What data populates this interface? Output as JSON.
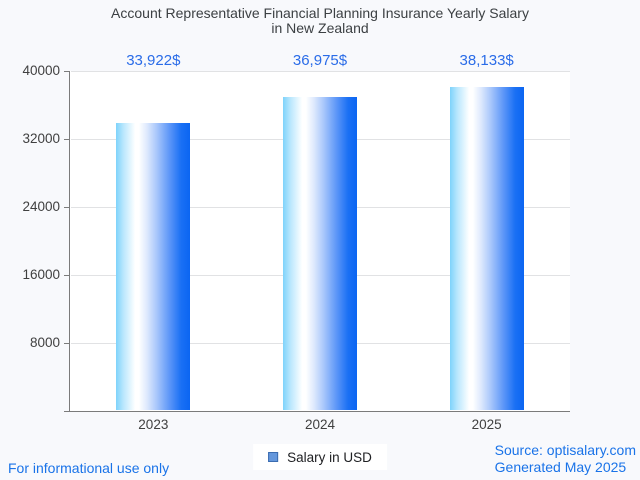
{
  "title": {
    "line1": "Account Representative Financial Planning Insurance Yearly Salary",
    "line2": "in New Zealand"
  },
  "chart_data": {
    "type": "bar",
    "categories": [
      "2023",
      "2024",
      "2025"
    ],
    "series": [
      {
        "name": "Salary in USD",
        "values": [
          33922,
          36975,
          38133
        ]
      }
    ],
    "annotations": [
      "33,922$",
      "36,975$",
      "38,133$"
    ],
    "y_ticks": [
      40000,
      32000,
      24000,
      16000,
      8000
    ],
    "ylim": [
      0,
      40000
    ],
    "xlabel": "",
    "ylabel": "",
    "grid": true,
    "legend_position": "bottom",
    "bar_gradient": [
      "#7ed3fb",
      "#ffffff",
      "#0b65f2"
    ]
  },
  "legend": {
    "label": "Salary in USD"
  },
  "footer": {
    "left_note": "For informational use only",
    "source_line1": "Source: optisalary.com",
    "source_line2": "Generated May 2025"
  },
  "colors": {
    "page_bg": "#f8f9fc",
    "plot_bg": "#ffffff",
    "gridline": "#e1e2e4",
    "axis": "#7b7b7b",
    "title_text": "#3c4043",
    "tick_label": "#404040",
    "annotation_text": "#2a6ce8",
    "link_blue": "#1a73e8",
    "legend_swatch_fill": "#6497dc",
    "legend_swatch_border": "#3a6cb0"
  }
}
